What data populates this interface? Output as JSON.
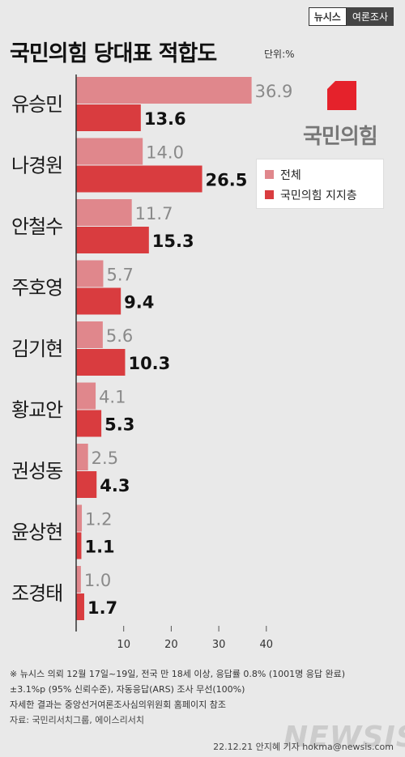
{
  "brand": {
    "agency": "뉴시스",
    "section": "여론조사"
  },
  "title": "국민의힘 당대표 적합도",
  "unit": "단위:%",
  "logo_text": "국민의힘",
  "colors": {
    "overall": "#e0878c",
    "supporters": "#d93c3f",
    "logo": "#e5222b"
  },
  "chart_data": {
    "type": "bar",
    "orientation": "horizontal",
    "categories": [
      "유승민",
      "나경원",
      "안철수",
      "주호영",
      "김기현",
      "황교안",
      "권성동",
      "윤상현",
      "조경태"
    ],
    "series": [
      {
        "name": "전체",
        "values": [
          36.9,
          14.0,
          11.7,
          5.7,
          5.6,
          4.1,
          2.5,
          1.2,
          1.0
        ]
      },
      {
        "name": "국민의힘 지지층",
        "values": [
          13.6,
          26.5,
          15.3,
          9.4,
          10.3,
          5.3,
          4.3,
          1.1,
          1.7
        ]
      }
    ],
    "x_ticks": [
      10,
      20,
      30,
      40
    ],
    "xlim": [
      0,
      40
    ],
    "legend_position": "right"
  },
  "notes": [
    "※ 뉴시스 의뢰 12월 17일~19일, 전국 만 18세 이상, 응답률 0.8% (1001명 응답 완료)",
    "±3.1%p (95% 신뢰수준), 자동응답(ARS) 조사 무선(100%)",
    "자세한 결과는 중앙선거여론조사심의위원회 홈페이지 참조",
    "자료: 국민리서치그룹, 에이스리서치"
  ],
  "footer": "22.12.21 안지혜 기자 hokma@newsis.com",
  "watermark": "NEWSIS"
}
